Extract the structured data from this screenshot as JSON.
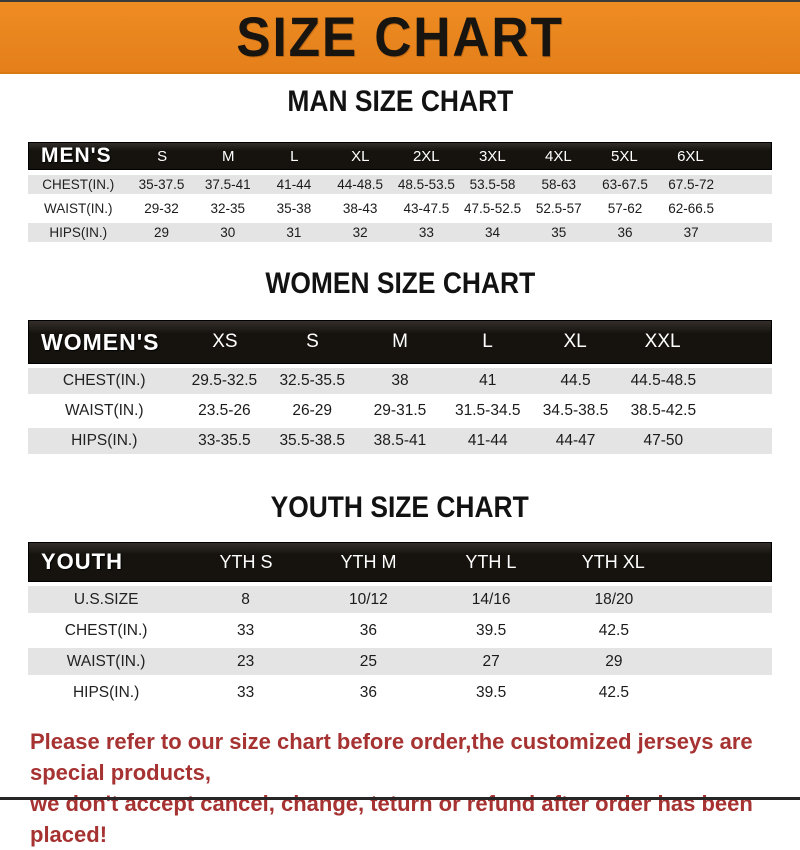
{
  "banner": {
    "title": "SIZE CHART",
    "bg_color": "#E8831D",
    "text_color": "#181511"
  },
  "colors": {
    "table_header_bg": "#16130F",
    "row_stripe": "#E4E4E4",
    "footer_text": "#A63232",
    "heading_text": "#121212"
  },
  "sections": [
    {
      "key": "men",
      "heading": "MAN SIZE CHART",
      "header_label": "MEN'S",
      "columns": [
        "S",
        "M",
        "L",
        "XL",
        "2XL",
        "3XL",
        "4XL",
        "5XL",
        "6XL"
      ],
      "rows": [
        {
          "label": "CHEST(IN.)",
          "values": [
            "35-37.5",
            "37.5-41",
            "41-44",
            "44-48.5",
            "48.5-53.5",
            "53.5-58",
            "58-63",
            "63-67.5",
            "67.5-72"
          ]
        },
        {
          "label": "WAIST(IN.)",
          "values": [
            "29-32",
            "32-35",
            "35-38",
            "38-43",
            "43-47.5",
            "47.5-52.5",
            "52.5-57",
            "57-62",
            "62-66.5"
          ]
        },
        {
          "label": "HIPS(IN.)",
          "values": [
            "29",
            "30",
            "31",
            "32",
            "33",
            "34",
            "35",
            "36",
            "37"
          ]
        }
      ]
    },
    {
      "key": "women",
      "heading": "WOMEN SIZE CHART",
      "header_label": "WOMEN'S",
      "columns": [
        "XS",
        "S",
        "M",
        "L",
        "XL",
        "XXL"
      ],
      "rows": [
        {
          "label": "CHEST(IN.)",
          "values": [
            "29.5-32.5",
            "32.5-35.5",
            "38",
            "41",
            "44.5",
            "44.5-48.5"
          ]
        },
        {
          "label": "WAIST(IN.)",
          "values": [
            "23.5-26",
            "26-29",
            "29-31.5",
            "31.5-34.5",
            "34.5-38.5",
            "38.5-42.5"
          ]
        },
        {
          "label": "HIPS(IN.)",
          "values": [
            "33-35.5",
            "35.5-38.5",
            "38.5-41",
            "41-44",
            "44-47",
            "47-50"
          ]
        }
      ]
    },
    {
      "key": "youth",
      "heading": "YOUTH SIZE CHART",
      "header_label": "YOUTH",
      "columns": [
        "YTH S",
        "YTH M",
        "YTH L",
        "YTH XL"
      ],
      "rows": [
        {
          "label": "U.S.SIZE",
          "values": [
            "8",
            "10/12",
            "14/16",
            "18/20"
          ]
        },
        {
          "label": "CHEST(IN.)",
          "values": [
            "33",
            "36",
            "39.5",
            "42.5"
          ]
        },
        {
          "label": "WAIST(IN.)",
          "values": [
            "23",
            "25",
            "27",
            "29"
          ]
        },
        {
          "label": "HIPS(IN.)",
          "values": [
            "33",
            "36",
            "39.5",
            "42.5"
          ]
        }
      ]
    }
  ],
  "footer": {
    "line1": "Please refer to our size chart before order,the customized jerseys are special products,",
    "line2": "we don't accept cancel, change, teturn or refund after order has been placed!"
  }
}
